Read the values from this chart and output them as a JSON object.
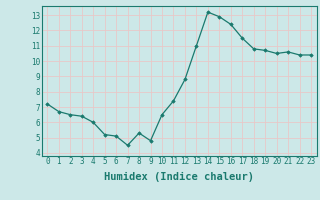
{
  "x": [
    0,
    1,
    2,
    3,
    4,
    5,
    6,
    7,
    8,
    9,
    10,
    11,
    12,
    13,
    14,
    15,
    16,
    17,
    18,
    19,
    20,
    21,
    22,
    23
  ],
  "y": [
    7.2,
    6.7,
    6.5,
    6.4,
    6.0,
    5.2,
    5.1,
    4.5,
    5.3,
    4.8,
    6.5,
    7.4,
    8.8,
    11.0,
    13.2,
    12.9,
    12.4,
    11.5,
    10.8,
    10.7,
    10.5,
    10.6,
    10.4,
    10.4
  ],
  "xlabel": "Humidex (Indice chaleur)",
  "xlim": [
    -0.5,
    23.5
  ],
  "ylim": [
    3.8,
    13.6
  ],
  "yticks": [
    4,
    5,
    6,
    7,
    8,
    9,
    10,
    11,
    12,
    13
  ],
  "xticks": [
    0,
    1,
    2,
    3,
    4,
    5,
    6,
    7,
    8,
    9,
    10,
    11,
    12,
    13,
    14,
    15,
    16,
    17,
    18,
    19,
    20,
    21,
    22,
    23
  ],
  "line_color": "#1a7a6e",
  "marker": "D",
  "marker_size": 1.8,
  "bg_color": "#cce8e8",
  "grid_color": "#e8c8c8",
  "label_color": "#1a7a6e",
  "tick_label_fontsize": 5.5,
  "xlabel_fontsize": 7.5,
  "spine_color": "#1a7a6e"
}
